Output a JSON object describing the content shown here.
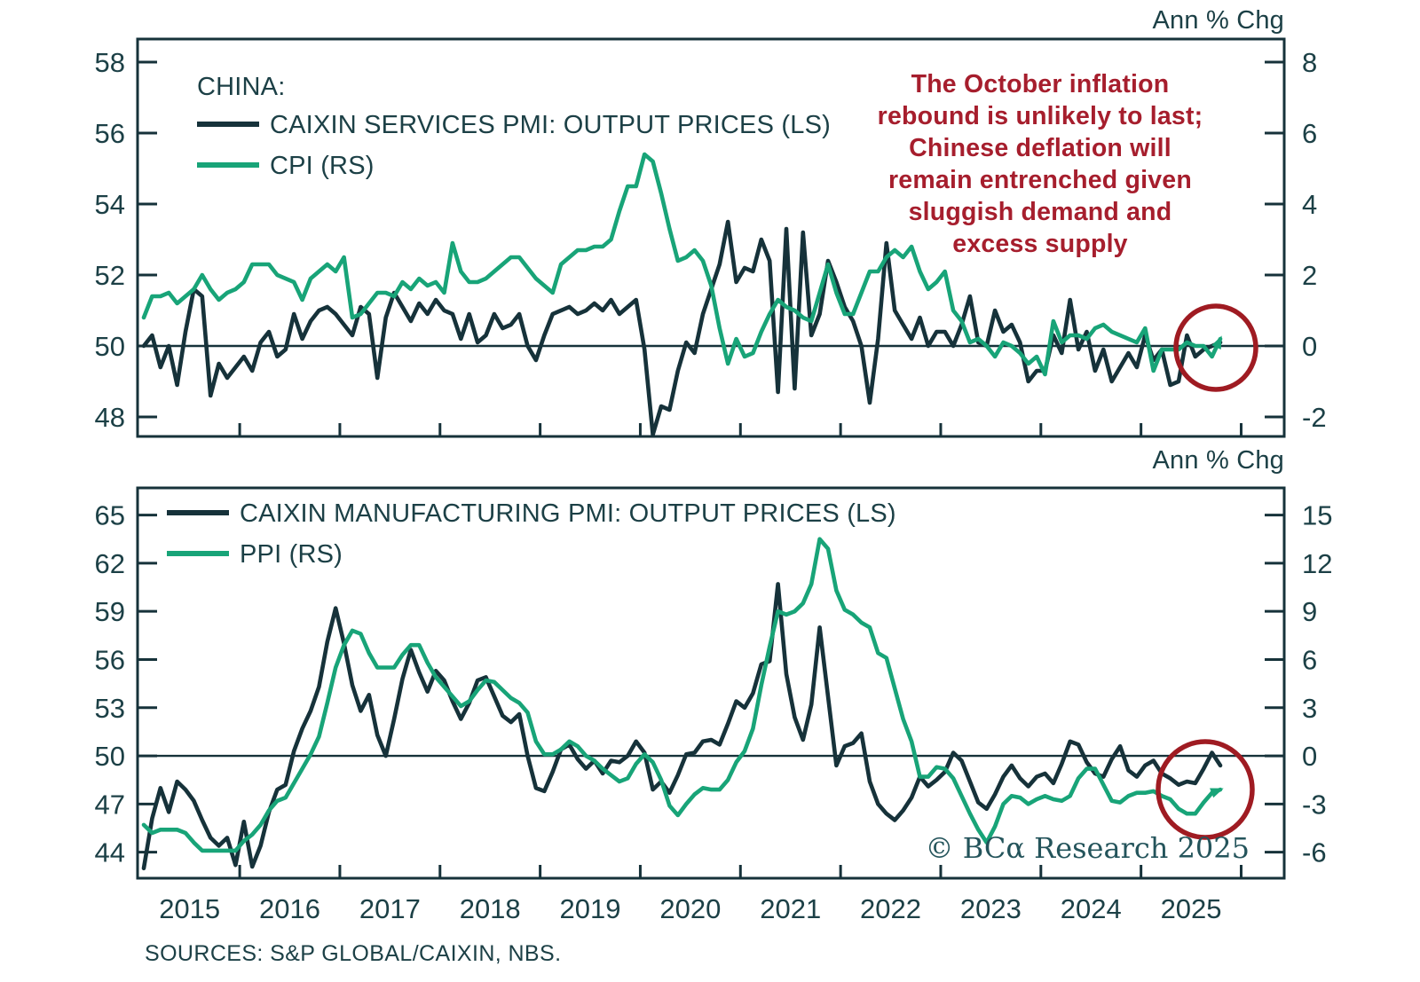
{
  "top_panel": {
    "unit_label": "Ann % Chg",
    "legend": {
      "title": "CHINA:",
      "series1": "CAIXIN SERVICES PMI: OUTPUT PRICES (LS)",
      "series2": "CPI (RS)"
    }
  },
  "bottom_panel": {
    "unit_label": "Ann % Chg",
    "legend": {
      "series1": "CAIXIN MANUFACTURING PMI: OUTPUT PRICES (LS)",
      "series2": "PPI (RS)"
    }
  },
  "annotation": {
    "lines": [
      "The October inflation",
      "rebound is unlikely to last;",
      "Chinese deflation will",
      "remain entrenched given",
      "sluggish demand and",
      "excess supply"
    ],
    "color": "#a61e2d"
  },
  "watermark": "© BCα Research 2025",
  "sources": "SOURCES: S&P GLOBAL/CAIXIN, NBS.",
  "colors": {
    "dark_line": "#16323a",
    "green_line": "#18a478",
    "axis": "#16323a",
    "text": "#1c4046",
    "red_text": "#a61e2d",
    "red_circle": "#9f1b22",
    "watermark": "#24545b",
    "background": "#ffffff"
  },
  "x_axis": {
    "labels": [
      "2015",
      "2016",
      "2017",
      "2018",
      "2019",
      "2020",
      "2021",
      "2022",
      "2023",
      "2024",
      "2025"
    ],
    "range": [
      2014.98,
      2026.43
    ]
  },
  "chart_data": [
    {
      "type": "line",
      "panel": "top",
      "x_start": "2015-01",
      "freq": "monthly",
      "zero_line": 50,
      "left_axis": {
        "ticks": [
          58,
          56,
          54,
          52,
          50,
          48
        ],
        "range": [
          47.45,
          58.65
        ]
      },
      "right_axis": {
        "ticks": [
          8,
          6,
          4,
          2,
          0,
          -2
        ],
        "range": [
          -2.55,
          8.65
        ],
        "label": "Ann % Chg"
      },
      "series": [
        {
          "name": "CAIXIN SERVICES PMI: OUTPUT PRICES (LS)",
          "axis": "left",
          "color_key": "dark_line",
          "end_arrow": false,
          "values": [
            50.0,
            50.3,
            49.4,
            50.0,
            48.9,
            50.4,
            51.6,
            51.4,
            48.6,
            49.5,
            49.1,
            49.4,
            49.7,
            49.3,
            50.1,
            50.4,
            49.7,
            49.9,
            50.9,
            50.2,
            50.7,
            51.0,
            51.1,
            50.9,
            50.6,
            50.3,
            51.1,
            50.9,
            49.1,
            50.8,
            51.5,
            51.1,
            50.7,
            51.2,
            50.9,
            51.3,
            51.0,
            50.9,
            50.2,
            50.9,
            50.1,
            50.3,
            50.9,
            50.5,
            50.6,
            50.9,
            50.0,
            49.6,
            50.3,
            50.9,
            51.0,
            51.1,
            50.9,
            51.0,
            51.2,
            51.0,
            51.3,
            50.9,
            51.1,
            51.3,
            49.9,
            47.5,
            48.3,
            48.2,
            49.3,
            50.1,
            49.8,
            50.9,
            51.6,
            52.3,
            53.5,
            51.8,
            52.2,
            52.1,
            53.0,
            52.4,
            48.7,
            53.3,
            48.8,
            53.2,
            50.3,
            50.9,
            52.4,
            51.8,
            51.1,
            50.7,
            50.0,
            48.4,
            50.2,
            52.9,
            51.0,
            50.6,
            50.2,
            50.8,
            50.0,
            50.4,
            50.4,
            50.0,
            50.6,
            51.4,
            50.1,
            50.0,
            51.0,
            50.4,
            50.6,
            50.1,
            49.0,
            49.3,
            49.3,
            50.3,
            49.8,
            51.3,
            49.9,
            50.4,
            49.3,
            49.9,
            49.0,
            49.4,
            49.8,
            49.4,
            50.3,
            49.6,
            49.9,
            48.9,
            49.0,
            50.3,
            49.7,
            49.9,
            50.0,
            50.1
          ]
        },
        {
          "name": "CPI (RS)",
          "axis": "right",
          "color_key": "green_line",
          "end_arrow": true,
          "values": [
            0.8,
            1.4,
            1.4,
            1.5,
            1.2,
            1.4,
            1.6,
            2.0,
            1.6,
            1.3,
            1.5,
            1.6,
            1.8,
            2.3,
            2.3,
            2.3,
            2.0,
            1.9,
            1.8,
            1.3,
            1.9,
            2.1,
            2.3,
            2.1,
            2.5,
            0.8,
            0.9,
            1.2,
            1.5,
            1.5,
            1.4,
            1.8,
            1.6,
            1.9,
            1.7,
            1.8,
            1.5,
            2.9,
            2.1,
            1.8,
            1.8,
            1.9,
            2.1,
            2.3,
            2.5,
            2.5,
            2.2,
            1.9,
            1.7,
            1.5,
            2.3,
            2.5,
            2.7,
            2.7,
            2.8,
            2.8,
            3.0,
            3.8,
            4.5,
            4.5,
            5.4,
            5.2,
            4.3,
            3.3,
            2.4,
            2.5,
            2.7,
            2.4,
            1.7,
            0.5,
            -0.5,
            0.2,
            -0.3,
            -0.2,
            0.4,
            0.9,
            1.3,
            1.1,
            1.0,
            0.8,
            0.7,
            1.5,
            2.3,
            1.5,
            0.9,
            0.9,
            1.5,
            2.1,
            2.1,
            2.5,
            2.7,
            2.5,
            2.8,
            2.1,
            1.6,
            1.8,
            2.1,
            1.0,
            0.7,
            0.1,
            0.2,
            0.0,
            -0.3,
            0.1,
            0.0,
            -0.2,
            -0.5,
            -0.3,
            -0.8,
            0.7,
            0.1,
            0.3,
            0.3,
            0.2,
            0.5,
            0.6,
            0.4,
            0.3,
            0.2,
            0.1,
            0.5,
            -0.7,
            -0.1,
            -0.1,
            -0.1,
            0.1,
            0.0,
            0.0,
            -0.3,
            0.2
          ]
        }
      ]
    },
    {
      "type": "line",
      "panel": "bottom",
      "x_start": "2015-01",
      "freq": "monthly",
      "zero_line": 50,
      "left_axis": {
        "ticks": [
          65,
          62,
          59,
          56,
          53,
          50,
          47,
          44
        ],
        "range": [
          42.38,
          66.69
        ]
      },
      "right_axis": {
        "ticks": [
          15,
          12,
          9,
          6,
          3,
          0,
          -3,
          -6
        ],
        "range": [
          -7.62,
          16.69
        ],
        "label": "Ann % Chg"
      },
      "series": [
        {
          "name": "CAIXIN MANUFACTURING PMI: OUTPUT PRICES (LS)",
          "axis": "left",
          "color_key": "dark_line",
          "end_arrow": false,
          "values": [
            43.0,
            46.1,
            48.0,
            46.5,
            48.4,
            47.9,
            47.2,
            46.0,
            44.9,
            44.4,
            44.9,
            43.2,
            45.9,
            43.1,
            44.4,
            46.5,
            47.9,
            48.2,
            50.3,
            51.7,
            52.8,
            54.3,
            57.1,
            59.2,
            57.0,
            54.4,
            52.8,
            53.8,
            51.3,
            50.0,
            52.3,
            54.8,
            56.6,
            55.2,
            54.0,
            55.3,
            54.7,
            53.4,
            52.3,
            53.3,
            54.7,
            54.9,
            53.7,
            52.5,
            52.1,
            52.6,
            50.0,
            48.0,
            47.8,
            49.0,
            50.4,
            50.7,
            49.8,
            49.2,
            49.7,
            48.9,
            49.7,
            49.6,
            50.0,
            50.9,
            50.2,
            47.9,
            48.4,
            47.7,
            48.8,
            50.1,
            50.2,
            50.9,
            51.0,
            50.7,
            52.0,
            53.4,
            53.0,
            53.9,
            55.7,
            55.9,
            60.7,
            55.1,
            52.4,
            51.0,
            53.2,
            58.0,
            53.7,
            49.4,
            50.6,
            50.8,
            51.4,
            48.4,
            47.0,
            46.4,
            46.0,
            46.6,
            47.4,
            48.7,
            48.1,
            48.5,
            49.0,
            50.2,
            49.7,
            48.4,
            47.1,
            46.7,
            47.6,
            48.7,
            49.4,
            48.6,
            48.1,
            48.7,
            48.9,
            48.3,
            49.5,
            50.9,
            50.7,
            49.6,
            48.9,
            48.7,
            49.8,
            50.6,
            49.1,
            48.7,
            49.4,
            49.7,
            48.9,
            48.6,
            48.2,
            48.4,
            48.3,
            49.2,
            50.2,
            49.4
          ]
        },
        {
          "name": "PPI (RS)",
          "axis": "right",
          "color_key": "green_line",
          "end_arrow": true,
          "values": [
            -4.3,
            -4.8,
            -4.6,
            -4.6,
            -4.6,
            -4.8,
            -5.4,
            -5.9,
            -5.9,
            -5.9,
            -5.9,
            -5.9,
            -5.3,
            -4.9,
            -4.3,
            -3.4,
            -2.8,
            -2.6,
            -1.7,
            -0.8,
            0.1,
            1.2,
            3.3,
            5.5,
            6.9,
            7.8,
            7.6,
            6.4,
            5.5,
            5.5,
            5.5,
            6.3,
            6.9,
            6.9,
            5.8,
            4.9,
            4.3,
            3.7,
            3.1,
            3.4,
            4.1,
            4.7,
            4.6,
            4.1,
            3.6,
            3.3,
            2.7,
            0.9,
            0.1,
            0.1,
            0.4,
            0.9,
            0.6,
            0.0,
            -0.3,
            -0.8,
            -1.2,
            -1.6,
            -1.4,
            -0.5,
            0.1,
            -0.4,
            -1.5,
            -3.1,
            -3.7,
            -3.0,
            -2.4,
            -2.0,
            -2.1,
            -2.1,
            -1.5,
            -0.4,
            0.3,
            1.7,
            4.4,
            6.8,
            9.0,
            8.8,
            9.0,
            9.5,
            10.7,
            13.5,
            12.9,
            10.3,
            9.1,
            8.8,
            8.3,
            8.0,
            6.4,
            6.1,
            4.2,
            2.3,
            0.9,
            -1.3,
            -1.3,
            -0.7,
            -0.8,
            -1.4,
            -2.5,
            -3.6,
            -4.6,
            -5.4,
            -4.4,
            -3.0,
            -2.5,
            -2.6,
            -3.0,
            -2.7,
            -2.5,
            -2.7,
            -2.8,
            -2.5,
            -1.4,
            -0.8,
            -0.8,
            -1.8,
            -2.8,
            -2.9,
            -2.5,
            -2.3,
            -2.3,
            -2.2,
            -2.5,
            -2.7,
            -3.3,
            -3.6,
            -3.6,
            -2.9,
            -2.3,
            -2.1
          ]
        }
      ]
    }
  ]
}
